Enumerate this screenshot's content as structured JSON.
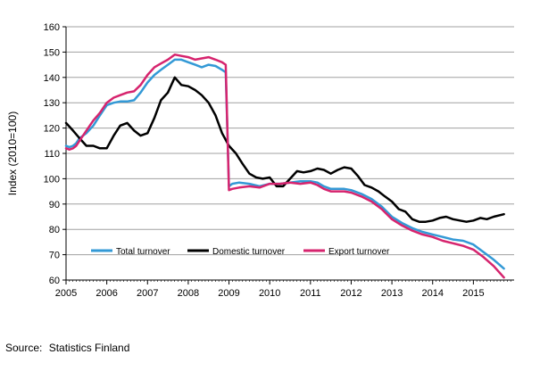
{
  "chart_data": {
    "type": "line",
    "title": "",
    "xlabel": "",
    "ylabel": "Index (2010=100)",
    "ylim": [
      60,
      160
    ],
    "xlim": [
      2005,
      2016
    ],
    "yticks": [
      60,
      70,
      80,
      90,
      100,
      110,
      120,
      130,
      140,
      150,
      160
    ],
    "xticks": [
      2005,
      2006,
      2007,
      2008,
      2009,
      2010,
      2011,
      2012,
      2013,
      2014,
      2015
    ],
    "grid": "horizontal",
    "legend_position": "bottom-inside",
    "series": [
      {
        "name": "Total turnover",
        "color": "#3399d6",
        "x": [
          2005.0,
          2005.08,
          2005.17,
          2005.25,
          2005.33,
          2005.5,
          2005.67,
          2005.83,
          2006.0,
          2006.17,
          2006.33,
          2006.5,
          2006.67,
          2006.83,
          2007.0,
          2007.17,
          2007.33,
          2007.5,
          2007.67,
          2007.83,
          2008.0,
          2008.17,
          2008.33,
          2008.5,
          2008.67,
          2008.83,
          2008.92,
          2009.0,
          2009.08,
          2009.25,
          2009.5,
          2009.75,
          2010.0,
          2010.25,
          2010.5,
          2010.75,
          2011.0,
          2011.17,
          2011.33,
          2011.5,
          2011.67,
          2011.83,
          2012.0,
          2012.25,
          2012.5,
          2012.75,
          2013.0,
          2013.25,
          2013.5,
          2013.75,
          2014.0,
          2014.25,
          2014.5,
          2014.75,
          2015.0,
          2015.25,
          2015.5,
          2015.75
        ],
        "values": [
          113,
          112.5,
          113,
          114,
          116,
          118,
          121,
          125,
          129,
          130,
          130.5,
          130.5,
          131,
          134,
          138,
          141,
          143,
          145,
          147,
          147,
          146,
          145,
          144,
          145,
          144.5,
          143,
          142,
          97,
          98,
          98.5,
          98,
          97,
          98,
          98,
          98.5,
          99,
          99,
          98.5,
          97,
          96,
          96,
          96,
          95.5,
          94,
          92,
          89,
          85,
          82.5,
          80.5,
          79,
          78,
          77,
          76,
          75.5,
          74,
          71,
          68,
          64.5
        ]
      },
      {
        "name": "Domestic turnover",
        "color": "#000000",
        "x": [
          2005.0,
          2005.17,
          2005.33,
          2005.5,
          2005.67,
          2005.83,
          2006.0,
          2006.17,
          2006.33,
          2006.5,
          2006.67,
          2006.83,
          2007.0,
          2007.17,
          2007.33,
          2007.5,
          2007.67,
          2007.83,
          2008.0,
          2008.17,
          2008.33,
          2008.5,
          2008.67,
          2008.83,
          2009.0,
          2009.17,
          2009.33,
          2009.5,
          2009.67,
          2009.83,
          2010.0,
          2010.17,
          2010.33,
          2010.5,
          2010.67,
          2010.83,
          2011.0,
          2011.17,
          2011.33,
          2011.5,
          2011.67,
          2011.83,
          2012.0,
          2012.17,
          2012.33,
          2012.5,
          2012.67,
          2012.83,
          2013.0,
          2013.17,
          2013.33,
          2013.5,
          2013.67,
          2013.83,
          2014.0,
          2014.17,
          2014.33,
          2014.5,
          2014.67,
          2014.83,
          2015.0,
          2015.17,
          2015.33,
          2015.5,
          2015.75
        ],
        "values": [
          122,
          119,
          116,
          113,
          113,
          112,
          112,
          117,
          121,
          122,
          119,
          117,
          118,
          124,
          131,
          134,
          140,
          137,
          136.5,
          135,
          133,
          130,
          125,
          118,
          113,
          110,
          106,
          102,
          100.5,
          100,
          100.5,
          97,
          97,
          100,
          103,
          102.5,
          103,
          104,
          103.5,
          102,
          103.5,
          104.5,
          104,
          101,
          97.5,
          96.5,
          95,
          93,
          91,
          88,
          87,
          84,
          83,
          83,
          83.5,
          84.5,
          85,
          84,
          83.5,
          83,
          83.5,
          84.5,
          84,
          85,
          86
        ]
      },
      {
        "name": "Export turnover",
        "color": "#d6246e",
        "x": [
          2005.0,
          2005.08,
          2005.17,
          2005.25,
          2005.33,
          2005.5,
          2005.67,
          2005.83,
          2006.0,
          2006.17,
          2006.33,
          2006.5,
          2006.67,
          2006.83,
          2007.0,
          2007.17,
          2007.33,
          2007.5,
          2007.67,
          2007.83,
          2008.0,
          2008.17,
          2008.33,
          2008.5,
          2008.67,
          2008.83,
          2008.92,
          2009.0,
          2009.08,
          2009.25,
          2009.5,
          2009.75,
          2010.0,
          2010.25,
          2010.5,
          2010.75,
          2011.0,
          2011.17,
          2011.33,
          2011.5,
          2011.67,
          2011.83,
          2012.0,
          2012.25,
          2012.5,
          2012.75,
          2013.0,
          2013.25,
          2013.5,
          2013.75,
          2014.0,
          2014.25,
          2014.5,
          2014.75,
          2015.0,
          2015.25,
          2015.5,
          2015.75
        ],
        "values": [
          112,
          111.5,
          112,
          113,
          115,
          119,
          123,
          126,
          130,
          132,
          133,
          134,
          134.5,
          137,
          141,
          144,
          145.5,
          147,
          149,
          148.5,
          148,
          147,
          147.5,
          148,
          147,
          146,
          145,
          95.5,
          96,
          96.5,
          97,
          96.5,
          98,
          98,
          98.5,
          98,
          98.5,
          97.5,
          96,
          95,
          95,
          95,
          94.5,
          93,
          91,
          88,
          84,
          81.5,
          79.5,
          78,
          77,
          75.5,
          74.5,
          73.5,
          72,
          69,
          65.5,
          61
        ]
      }
    ],
    "source": {
      "label": "Source:",
      "text": "Statistics Finland"
    }
  }
}
